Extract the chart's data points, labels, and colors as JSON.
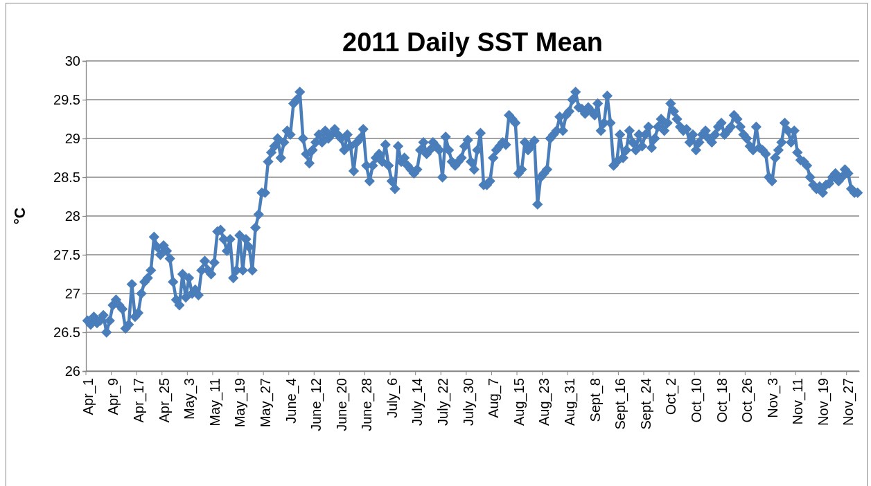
{
  "chart_data": {
    "type": "line",
    "title": "2011 Daily SST Mean",
    "ylabel": "°C",
    "color": "#4a7ebb",
    "marker": "diamond",
    "grid": "y",
    "ylim": [
      26,
      30
    ],
    "yticks": [
      26,
      26.5,
      27,
      27.5,
      28,
      28.5,
      29,
      29.5,
      30
    ],
    "categories": [
      "Apr_1",
      null,
      null,
      null,
      null,
      null,
      null,
      null,
      "Apr_9",
      null,
      null,
      null,
      null,
      null,
      null,
      null,
      "Apr_17",
      null,
      null,
      null,
      null,
      null,
      null,
      null,
      "Apr_25",
      null,
      null,
      null,
      null,
      null,
      null,
      null,
      "May_3",
      null,
      null,
      null,
      null,
      null,
      null,
      null,
      "May_11",
      null,
      null,
      null,
      null,
      null,
      null,
      null,
      "May_19",
      null,
      null,
      null,
      null,
      null,
      null,
      null,
      "May_27",
      null,
      null,
      null,
      null,
      null,
      null,
      null,
      "June_4",
      null,
      null,
      null,
      null,
      null,
      null,
      null,
      "June_12",
      null,
      null,
      null,
      null,
      null,
      null,
      null,
      "June_20",
      null,
      null,
      null,
      null,
      null,
      null,
      null,
      "June_28",
      null,
      null,
      null,
      null,
      null,
      null,
      null,
      "July_6",
      null,
      null,
      null,
      null,
      null,
      null,
      null,
      "July_14",
      null,
      null,
      null,
      null,
      null,
      null,
      null,
      "July_22",
      null,
      null,
      null,
      null,
      null,
      null,
      null,
      "July_30",
      null,
      null,
      null,
      null,
      null,
      null,
      null,
      "Aug_7",
      null,
      null,
      null,
      null,
      null,
      null,
      null,
      "Aug_15",
      null,
      null,
      null,
      null,
      null,
      null,
      null,
      "Aug_23",
      null,
      null,
      null,
      null,
      null,
      null,
      null,
      "Aug_31",
      null,
      null,
      null,
      null,
      null,
      null,
      null,
      "Sept_8",
      null,
      null,
      null,
      null,
      null,
      null,
      null,
      "Sept_16",
      null,
      null,
      null,
      null,
      null,
      null,
      null,
      "Sept_24",
      null,
      null,
      null,
      null,
      null,
      null,
      null,
      "Oct_2",
      null,
      null,
      null,
      null,
      null,
      null,
      null,
      "Oct_10",
      null,
      null,
      null,
      null,
      null,
      null,
      null,
      "Oct_18",
      null,
      null,
      null,
      null,
      null,
      null,
      null,
      "Oct_26",
      null,
      null,
      null,
      null,
      null,
      null,
      null,
      "Nov_3",
      null,
      null,
      null,
      null,
      null,
      null,
      null,
      "Nov_11",
      null,
      null,
      null,
      null,
      null,
      null,
      null,
      "Nov_19",
      null,
      null,
      null,
      null,
      null,
      null,
      null,
      "Nov_27",
      null,
      null,
      null
    ],
    "values": [
      26.65,
      26.6,
      26.7,
      26.62,
      26.65,
      26.72,
      26.5,
      26.65,
      26.85,
      26.92,
      26.85,
      26.8,
      26.55,
      26.6,
      27.12,
      26.7,
      26.75,
      27.0,
      27.15,
      27.2,
      27.3,
      27.73,
      27.6,
      27.5,
      27.62,
      27.55,
      27.45,
      27.15,
      26.92,
      26.85,
      27.25,
      26.95,
      27.2,
      27.0,
      27.05,
      26.98,
      27.3,
      27.42,
      27.3,
      27.25,
      27.4,
      27.8,
      27.82,
      27.7,
      27.55,
      27.7,
      27.2,
      27.3,
      27.75,
      27.3,
      27.7,
      27.6,
      27.3,
      27.85,
      28.02,
      28.3,
      28.3,
      28.7,
      28.82,
      28.9,
      29.0,
      28.75,
      28.95,
      29.1,
      29.05,
      29.45,
      29.5,
      29.6,
      29.0,
      28.8,
      28.68,
      28.85,
      28.95,
      29.05,
      28.95,
      29.1,
      29.0,
      29.05,
      29.12,
      29.05,
      29.0,
      28.85,
      29.05,
      28.9,
      28.58,
      28.95,
      29.0,
      29.12,
      28.65,
      28.45,
      28.65,
      28.75,
      28.8,
      28.7,
      28.92,
      28.65,
      28.45,
      28.35,
      28.9,
      28.7,
      28.75,
      28.65,
      28.6,
      28.55,
      28.6,
      28.85,
      28.95,
      28.8,
      28.85,
      28.95,
      28.9,
      28.85,
      28.5,
      29.02,
      28.85,
      28.7,
      28.65,
      28.7,
      28.75,
      28.9,
      28.98,
      28.7,
      28.6,
      28.85,
      29.07,
      28.4,
      28.4,
      28.45,
      28.75,
      28.85,
      28.9,
      28.95,
      28.92,
      29.3,
      29.25,
      29.2,
      28.55,
      28.6,
      28.95,
      28.85,
      28.9,
      28.97,
      28.15,
      28.5,
      28.55,
      28.6,
      29.0,
      29.05,
      29.1,
      29.28,
      29.1,
      29.3,
      29.35,
      29.5,
      29.6,
      29.4,
      29.38,
      29.32,
      29.4,
      29.35,
      29.3,
      29.45,
      29.1,
      29.2,
      29.55,
      29.2,
      28.65,
      28.7,
      29.05,
      28.75,
      28.85,
      29.1,
      28.95,
      28.85,
      29.05,
      28.9,
      29.05,
      29.15,
      28.88,
      29.0,
      29.15,
      29.25,
      29.1,
      29.2,
      29.45,
      29.35,
      29.25,
      29.15,
      29.1,
      29.12,
      28.95,
      29.05,
      28.85,
      28.95,
      29.05,
      29.1,
      29.0,
      28.95,
      29.05,
      29.15,
      29.2,
      29.05,
      29.1,
      29.15,
      29.3,
      29.25,
      29.15,
      29.05,
      29.0,
      28.9,
      28.85,
      29.15,
      28.88,
      28.85,
      28.8,
      28.5,
      28.45,
      28.75,
      28.85,
      28.95,
      29.2,
      29.1,
      28.95,
      29.1,
      28.82,
      28.72,
      28.7,
      28.65,
      28.5,
      28.4,
      28.35,
      28.38,
      28.3,
      28.4,
      28.42,
      28.5,
      28.55,
      28.45,
      28.5,
      28.6,
      28.55,
      28.35,
      28.3,
      28.3
    ]
  }
}
